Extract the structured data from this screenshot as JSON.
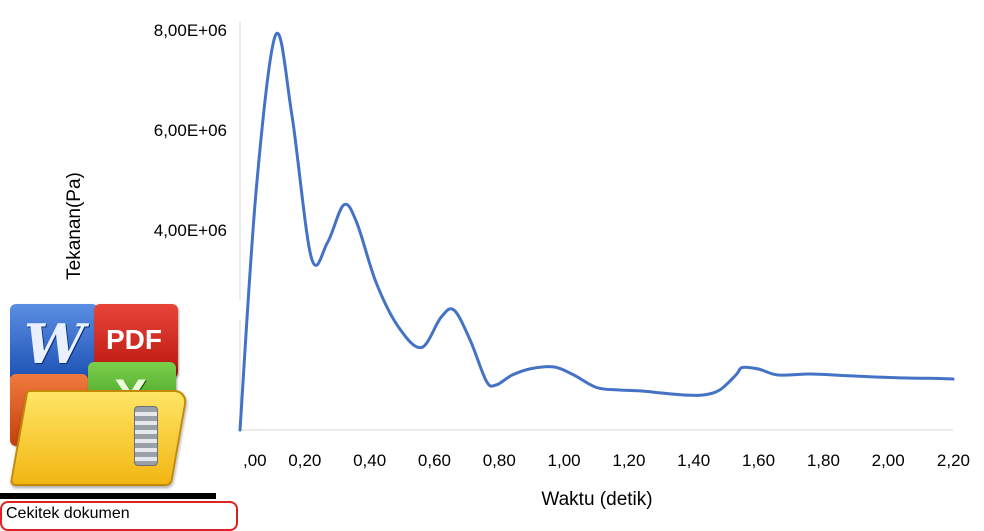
{
  "chart_data": {
    "type": "line",
    "title": "",
    "xlabel": "Waktu (detik)",
    "ylabel": "Tekanan(Pa)",
    "xlim": [
      0,
      2.2
    ],
    "ylim": [
      0,
      8000000
    ],
    "x_ticks": [
      ",00",
      "0,20",
      "0,40",
      "0,60",
      "0,80",
      "1,00",
      "1,20",
      "1,40",
      "1,60",
      "1,80",
      "2,00",
      "2,20"
    ],
    "y_ticks": [
      "4,00E+06",
      "6,00E+06",
      "8,00E+06"
    ],
    "y_tick_values": [
      4000000,
      6000000,
      8000000
    ],
    "line_color": "#4472C4",
    "grid": false,
    "legend": "none",
    "series": [
      {
        "x": [
          0.0,
          0.05,
          0.11,
          0.16,
          0.22,
          0.27,
          0.32,
          0.36,
          0.42,
          0.49,
          0.56,
          0.62,
          0.66,
          0.71,
          0.76,
          0.79,
          0.84,
          0.9,
          0.97,
          1.03,
          1.1,
          1.17,
          1.24,
          1.3,
          1.37,
          1.43,
          1.48,
          1.53,
          1.55,
          1.6,
          1.66,
          1.76,
          1.86,
          1.96,
          2.06,
          2.16,
          2.2
        ],
        "y": [
          0,
          4800000,
          7900000,
          6300000,
          3450000,
          3750000,
          4500000,
          4150000,
          2950000,
          2050000,
          1650000,
          2250000,
          2400000,
          1800000,
          980000,
          900000,
          1100000,
          1230000,
          1260000,
          1100000,
          850000,
          800000,
          780000,
          740000,
          700000,
          700000,
          800000,
          1100000,
          1250000,
          1220000,
          1100000,
          1120000,
          1090000,
          1060000,
          1040000,
          1030000,
          1020000
        ]
      }
    ]
  },
  "overlay": {
    "icon_letters": {
      "word": "W",
      "pdf": "PDF",
      "excel": "X"
    },
    "caption_text": "Ce‌ki‌t‌e‌k d‌o‌k‌u‌m‌e‌n"
  }
}
